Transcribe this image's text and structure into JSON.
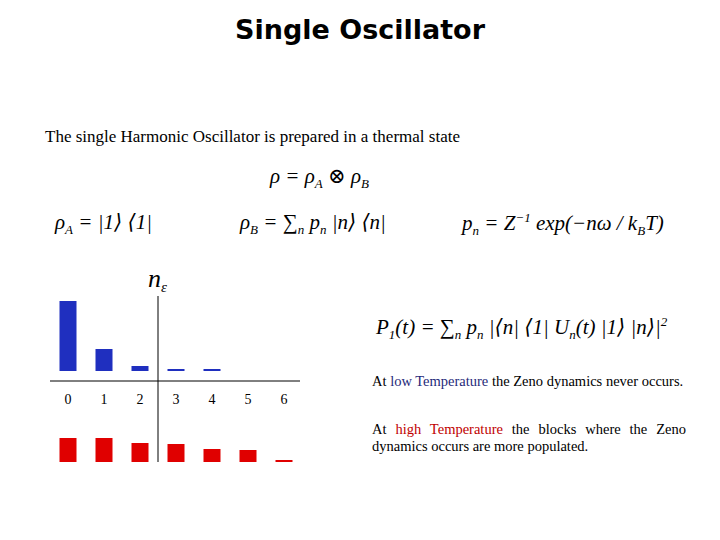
{
  "slide": {
    "title": "Single Oscillator",
    "intro": "The single Harmonic Oscillator is prepared in a thermal state",
    "formulas": [
      {
        "parts": [
          "ρ = ρ",
          {
            "sub": "A"
          },
          " ⊗ ρ",
          {
            "sub": "B"
          }
        ]
      },
      {
        "parts": [
          "ρ",
          {
            "sub": "A"
          },
          " = |1⟩ ⟨1|"
        ]
      },
      {
        "parts": [
          "ρ",
          {
            "sub": "B"
          },
          " = ∑",
          {
            "sub": "n"
          },
          " p",
          {
            "sub": "n"
          },
          " |n⟩ ⟨n|"
        ]
      },
      {
        "parts": [
          "p",
          {
            "sub": "n"
          },
          " = Z",
          {
            "sup": "−1"
          },
          " exp(−nω / k",
          {
            "sub": "B"
          },
          "T)"
        ]
      },
      {
        "parts": [
          "P",
          {
            "sub": "1"
          },
          "(t) = ∑",
          {
            "sub": "n"
          },
          " p",
          {
            "sub": "n"
          },
          " |⟨n| ⟨1| U",
          {
            "sub": "n"
          },
          "(t) |1⟩ |n⟩|",
          {
            "sup": "2"
          }
        ]
      }
    ],
    "paragraphs": [
      [
        {
          "text": "At "
        },
        {
          "text": "low Temperature",
          "color": "#1f2a7a"
        },
        {
          "text": " the Zeno dynamics never occurs."
        }
      ],
      [
        {
          "text": "At "
        },
        {
          "text": "high Temperature",
          "color": "#c00000"
        },
        {
          "text": " the blocks where the Zeno dynamics occurs are more populated."
        }
      ]
    ]
  },
  "chart_data": [
    {
      "type": "bar",
      "categories": [
        "0",
        "1",
        "2",
        "3",
        "4",
        "5",
        "6"
      ],
      "values": [
        0.7,
        0.22,
        0.05,
        0.02,
        0.01,
        0,
        0
      ],
      "color": "#1f2fbf",
      "ylim": [
        0,
        1
      ],
      "tick_labels": "x",
      "annotations": [
        {
          "text": "n",
          "sub": "ε",
          "x": 2.5
        }
      ]
    },
    {
      "type": "bar",
      "categories": [
        null,
        null,
        null,
        null,
        null,
        null,
        null
      ],
      "values": [
        0.24,
        0.24,
        0.19,
        0.18,
        0.13,
        0.12,
        0.02
      ],
      "color": "#e00000",
      "ylim": [
        0,
        1
      ],
      "tick_labels": false
    }
  ]
}
